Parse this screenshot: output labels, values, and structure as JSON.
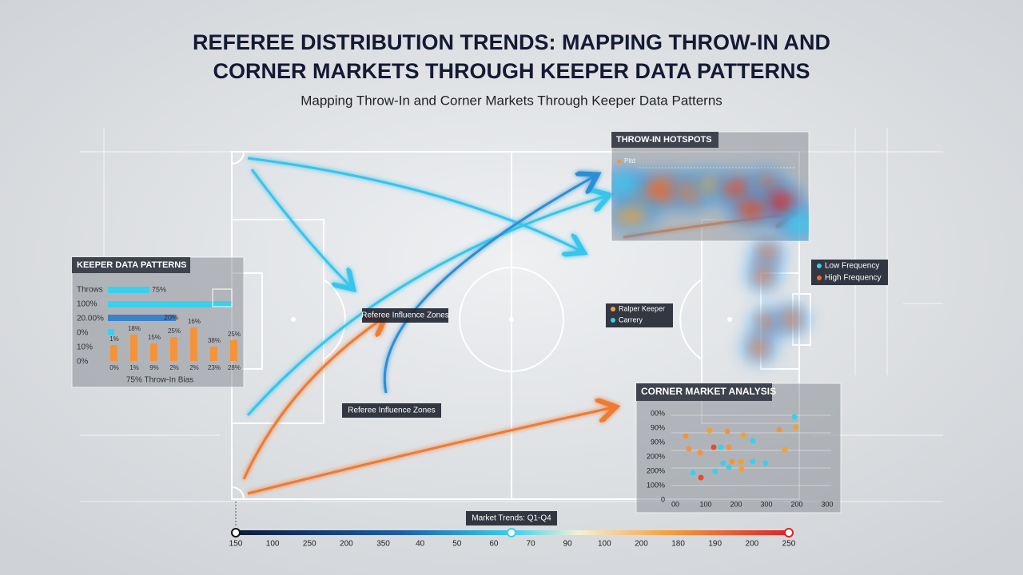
{
  "header": {
    "title_lines": [
      "REFEREE DISTRIBUTION TRENDS: MAPPING THROW-IN AND",
      "CORNER MARKETS THROUGH KEEPER DATA PATTERNS"
    ],
    "subtitle": "Mapping Throw-In and Corner Markets Through Keeper Data Patterns"
  },
  "keeper_panel": {
    "title": "KEEPER DATA PATTERNS",
    "row_labels": [
      "Throws",
      "100%",
      "20.00%",
      "0%",
      "10%",
      "0%"
    ],
    "bar_labels": [
      "75%",
      "20%"
    ],
    "column_labels": [
      "1%",
      "18%",
      "15%",
      "25%",
      "16%",
      "38%",
      "25%"
    ],
    "x_labels": [
      "0%",
      "1%",
      "9%",
      "2%",
      "2%",
      "23%",
      "28%"
    ],
    "caption": "75% Throw-In Bias"
  },
  "throwin_panel": {
    "title": "THROW-IN HOTSPOTS",
    "legend": "Pitd"
  },
  "frequency_legend": [
    "Low Frequency",
    "High Frequency"
  ],
  "keeper_legend": [
    "Ralper Keeper",
    "Carrery"
  ],
  "zone_labels": [
    "Referee Influence Zones",
    "Referee Influence Zones"
  ],
  "corner_panel": {
    "title": "CORNER MARKET ANALYSIS",
    "y_labels": [
      "00%",
      "90%",
      "90%",
      "200%",
      "200%",
      "100%",
      "0"
    ],
    "x_labels": [
      "00",
      "100",
      "200",
      "300",
      "200",
      "300"
    ]
  },
  "timeline": {
    "title": "Market Trends: Q1-Q4",
    "labels": [
      "150",
      "100",
      "250",
      "200",
      "350",
      "40",
      "50",
      "60",
      "70",
      "90",
      "100",
      "200",
      "180",
      "190",
      "200",
      "250"
    ]
  }
}
